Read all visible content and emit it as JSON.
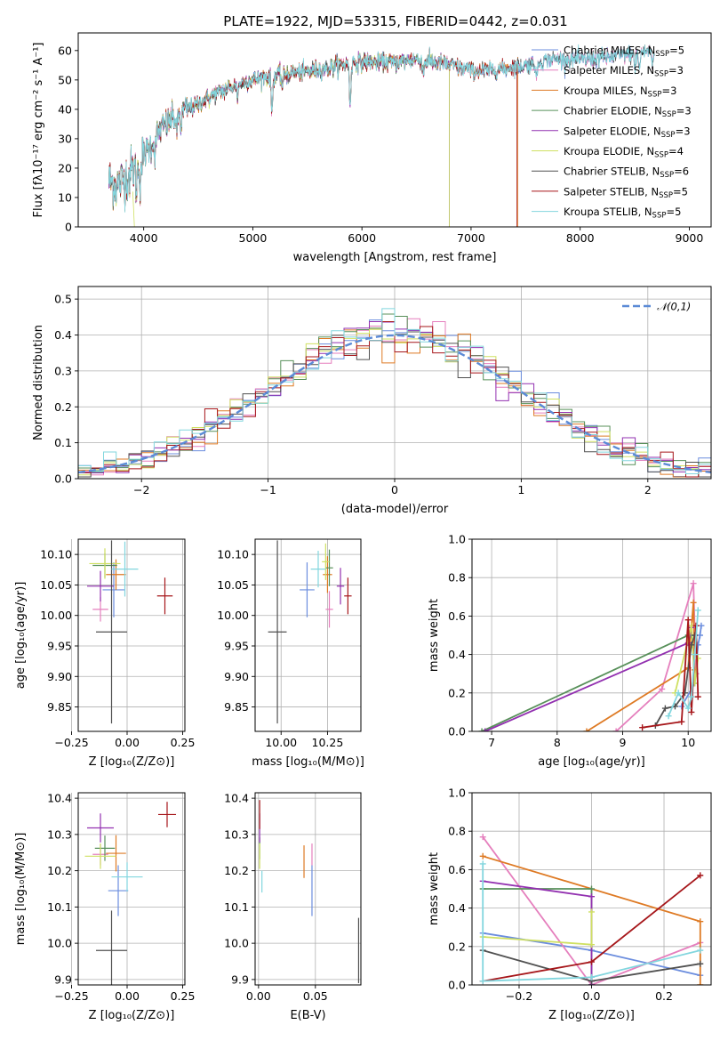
{
  "title": "PLATE=1922, MJD=53315, FIBERID=0442, z=0.031",
  "colors": {
    "Chabrier MILES": "#6b8dde",
    "Salpeter MILES": "#e57fbd",
    "Kroupa MILES": "#de7a24",
    "Chabrier ELODIE": "#58905a",
    "Salpeter ELODIE": "#9230b0",
    "Kroupa ELODIE": "#cfe062",
    "Chabrier STELIB": "#515151",
    "Salpeter STELIB": "#a6161a",
    "Kroupa STELIB": "#82d6de"
  },
  "chart_data": [
    {
      "id": "spectrum",
      "type": "line",
      "title": "PLATE=1922, MJD=53315, FIBERID=0442, z=0.031",
      "xlabel": "wavelength [Angstrom, rest frame]",
      "ylabel": "Flux [fλ10⁻¹⁷ erg cm⁻² s⁻¹ A⁻¹]",
      "xlim": [
        3400,
        9200
      ],
      "ylim": [
        0,
        66
      ],
      "xticks": [
        4000,
        5000,
        6000,
        7000,
        8000,
        9000
      ],
      "yticks": [
        0,
        10,
        20,
        30,
        40,
        50,
        60
      ],
      "legend_loc": "right",
      "continuum": {
        "x": [
          3680,
          3750,
          3850,
          3950,
          4050,
          4150,
          4300,
          4500,
          4700,
          4900,
          5100,
          5300,
          5500,
          5700,
          5900,
          6100,
          6300,
          6500,
          6700,
          6900,
          7100,
          7300,
          7500,
          7700,
          7900,
          8100,
          8300,
          8500,
          8650
        ],
        "y": [
          16,
          14,
          17,
          22,
          27,
          33,
          38,
          42,
          46,
          49,
          51,
          52,
          53,
          54,
          56,
          56,
          56,
          57,
          56,
          54,
          53,
          54,
          55,
          57,
          57,
          57,
          58,
          59,
          60
        ]
      },
      "absorption_lines": [
        {
          "x": 3934,
          "depth": 8
        },
        {
          "x": 3969,
          "depth": 7
        },
        {
          "x": 4102,
          "depth": 5
        },
        {
          "x": 4305,
          "depth": 6
        },
        {
          "x": 4340,
          "depth": 4
        },
        {
          "x": 4861,
          "depth": 4
        },
        {
          "x": 5175,
          "depth": 12
        },
        {
          "x": 5270,
          "depth": 4
        },
        {
          "x": 5892,
          "depth": 14
        },
        {
          "x": 6563,
          "depth": 4
        },
        {
          "x": 7600,
          "depth": 6
        },
        {
          "x": 8500,
          "depth": 5
        },
        {
          "x": 8542,
          "depth": 6
        },
        {
          "x": 8662,
          "depth": 5
        }
      ],
      "series": [
        {
          "name": "Chabrier MILES, N",
          "sub": "SSP",
          "suffix": "=5",
          "end": 8700
        },
        {
          "name": "Salpeter MILES, N",
          "sub": "SSP",
          "suffix": "=3",
          "end": 8700
        },
        {
          "name": "Kroupa MILES, N",
          "sub": "SSP",
          "suffix": "=3",
          "end": 7430
        },
        {
          "name": "Chabrier ELODIE, N",
          "sub": "SSP",
          "suffix": "=3",
          "end": 6800
        },
        {
          "name": "Salpeter ELODIE, N",
          "sub": "SSP",
          "suffix": "=3",
          "end": 6800
        },
        {
          "name": "Kroupa ELODIE, N",
          "sub": "SSP",
          "suffix": "=4",
          "end": 6800
        },
        {
          "name": "Chabrier STELIB, N",
          "sub": "SSP",
          "suffix": "=6",
          "end": 8700
        },
        {
          "name": "Salpeter STELIB, N",
          "sub": "SSP",
          "suffix": "=5",
          "end": 7420
        },
        {
          "name": "Kroupa STELIB, N",
          "sub": "SSP",
          "suffix": "=5",
          "end": 8700
        }
      ]
    },
    {
      "id": "residuals",
      "type": "line",
      "xlabel": "(data-model)/error",
      "ylabel": "Normed distribution",
      "xlim": [
        -2.5,
        2.5
      ],
      "ylim": [
        0,
        0.535
      ],
      "xticks": [
        -2,
        -1,
        0,
        1,
        2
      ],
      "yticks": [
        0.0,
        0.1,
        0.2,
        0.3,
        0.4,
        0.5
      ],
      "bin_width": 0.1,
      "bin_start": -2.5,
      "legend": "𝒩(0,1)",
      "gaussian": {
        "mean": 0,
        "sigma": 1
      }
    },
    {
      "id": "age_vs_Z",
      "type": "scatter",
      "xlabel": "Z [log₁₀(Z/Z⊙)]",
      "ylabel": "age  [log₁₀(age/yr)]",
      "xlim": [
        -0.22,
        0.26
      ],
      "ylim": [
        9.81,
        10.125
      ],
      "xticks": [
        "-0.25",
        "0.00",
        "0.25"
      ],
      "yticks": [
        "9.85",
        "9.90",
        "9.95",
        "10.00",
        "10.05",
        "10.10"
      ],
      "points": [
        {
          "model": "Chabrier MILES",
          "x": -0.06,
          "y": 10.042,
          "xerr": 0.05,
          "yerr": 0.045
        },
        {
          "model": "Salpeter MILES",
          "x": -0.12,
          "y": 10.01,
          "xerr": 0.035,
          "yerr": 0.02
        },
        {
          "model": "Kroupa MILES",
          "x": -0.05,
          "y": 10.067,
          "xerr": 0.045,
          "yerr": 0.025
        },
        {
          "model": "Chabrier ELODIE",
          "x": -0.1,
          "y": 10.082,
          "xerr": 0.055,
          "yerr": 0.02
        },
        {
          "model": "Salpeter ELODIE",
          "x": -0.12,
          "y": 10.048,
          "xerr": 0.06,
          "yerr": 0.025
        },
        {
          "model": "Kroupa ELODIE",
          "x": -0.1,
          "y": 10.085,
          "xerr": 0.07,
          "yerr": 0.025
        },
        {
          "model": "Chabrier STELIB",
          "x": -0.07,
          "y": 9.973,
          "xerr": 0.07,
          "yerr": 0.15
        },
        {
          "model": "Salpeter STELIB",
          "x": 0.17,
          "y": 10.032,
          "xerr": 0.035,
          "yerr": 0.03
        },
        {
          "model": "Kroupa STELIB",
          "x": -0.01,
          "y": 10.076,
          "xerr": 0.06,
          "yerr": 0.045
        }
      ]
    },
    {
      "id": "age_vs_mass",
      "type": "scatter",
      "xlabel": "mass [log₁₀(M/M⊙)]",
      "ylabel": "",
      "xlim": [
        9.86,
        10.43
      ],
      "ylim": [
        9.81,
        10.125
      ],
      "xticks": [
        "10.00",
        "10.25"
      ],
      "yticks": [
        "9.85",
        "9.90",
        "9.95",
        "10.00",
        "10.05",
        "10.10"
      ],
      "points": [
        {
          "model": "Chabrier MILES",
          "x": 10.14,
          "y": 10.042,
          "xerr": 0.04,
          "yerr": 0.045
        },
        {
          "model": "Salpeter MILES",
          "x": 10.26,
          "y": 10.01,
          "xerr": 0.02,
          "yerr": 0.03
        },
        {
          "model": "Kroupa MILES",
          "x": 10.25,
          "y": 10.067,
          "xerr": 0.025,
          "yerr": 0.03
        },
        {
          "model": "Chabrier ELODIE",
          "x": 10.26,
          "y": 10.078,
          "xerr": 0.02,
          "yerr": 0.03
        },
        {
          "model": "Salpeter ELODIE",
          "x": 10.32,
          "y": 10.048,
          "xerr": 0.02,
          "yerr": 0.03
        },
        {
          "model": "Kroupa ELODIE",
          "x": 10.24,
          "y": 10.088,
          "xerr": 0.02,
          "yerr": 0.03
        },
        {
          "model": "Chabrier STELIB",
          "x": 9.98,
          "y": 9.973,
          "xerr": 0.05,
          "yerr": 0.15
        },
        {
          "model": "Salpeter STELIB",
          "x": 10.36,
          "y": 10.032,
          "xerr": 0.02,
          "yerr": 0.03
        },
        {
          "model": "Kroupa STELIB",
          "x": 10.2,
          "y": 10.076,
          "xerr": 0.04,
          "yerr": 0.03
        }
      ]
    },
    {
      "id": "mass_weight_vs_age",
      "type": "line",
      "xlabel": "age  [log₁₀(age/yr)]",
      "ylabel": "mass weight",
      "xlim": [
        6.7,
        10.35
      ],
      "ylim": [
        0,
        1.0
      ],
      "xticks": [
        7,
        8,
        9,
        10
      ],
      "yticks": [
        0.0,
        0.2,
        0.4,
        0.6,
        0.8,
        1.0
      ],
      "series": [
        {
          "model": "Chabrier MILES",
          "x": [
            9.9,
            10.1,
            10.15,
            10.18,
            10.2
          ],
          "y": [
            0.13,
            0.25,
            0.45,
            0.5,
            0.55
          ]
        },
        {
          "model": "Salpeter MILES",
          "x": [
            8.9,
            9.6,
            10.08,
            10.12
          ],
          "y": [
            0.0,
            0.22,
            0.77,
            0.3
          ]
        },
        {
          "model": "Kroupa MILES",
          "x": [
            8.45,
            10.0,
            10.08,
            10.1
          ],
          "y": [
            0.0,
            0.33,
            0.67,
            0.32
          ]
        },
        {
          "model": "Chabrier ELODIE",
          "x": [
            6.85,
            10.0,
            10.05
          ],
          "y": [
            0.0,
            0.5,
            0.5
          ]
        },
        {
          "model": "Salpeter ELODIE",
          "x": [
            6.9,
            10.0,
            10.05
          ],
          "y": [
            0.0,
            0.46,
            0.54
          ]
        },
        {
          "model": "Kroupa ELODIE",
          "x": [
            9.8,
            10.05,
            10.1,
            10.15
          ],
          "y": [
            0.2,
            0.55,
            0.25,
            0.38
          ]
        },
        {
          "model": "Chabrier STELIB",
          "x": [
            9.5,
            9.65,
            9.8,
            9.95,
            10.05,
            10.1
          ],
          "y": [
            0.03,
            0.12,
            0.13,
            0.2,
            0.45,
            0.5
          ]
        },
        {
          "model": "Salpeter STELIB",
          "x": [
            9.3,
            9.9,
            10.0,
            10.05,
            10.12,
            10.15
          ],
          "y": [
            0.02,
            0.05,
            0.58,
            0.1,
            0.55,
            0.18
          ]
        },
        {
          "model": "Kroupa STELIB",
          "x": [
            9.7,
            9.85,
            10.0,
            10.05,
            10.1,
            10.15
          ],
          "y": [
            0.08,
            0.2,
            0.12,
            0.18,
            0.4,
            0.63
          ]
        }
      ]
    },
    {
      "id": "mass_vs_Z",
      "type": "scatter",
      "xlabel": "Z [log₁₀(Z/Z⊙)]",
      "ylabel": "mass [log₁₀(M/M⊙)]",
      "xlim": [
        -0.22,
        0.26
      ],
      "ylim": [
        9.885,
        10.415
      ],
      "xticks": [
        "-0.25",
        "0.00",
        "0.25"
      ],
      "yticks": [
        "9.9",
        "10.0",
        "10.1",
        "10.2",
        "10.3",
        "10.4"
      ],
      "points": [
        {
          "model": "Chabrier MILES",
          "x": -0.04,
          "y": 10.145,
          "xerr": 0.045,
          "yerr": 0.07
        },
        {
          "model": "Salpeter MILES",
          "x": -0.12,
          "y": 10.245,
          "xerr": 0.035,
          "yerr": 0.03
        },
        {
          "model": "Kroupa MILES",
          "x": -0.05,
          "y": 10.248,
          "xerr": 0.045,
          "yerr": 0.05
        },
        {
          "model": "Chabrier ELODIE",
          "x": -0.1,
          "y": 10.262,
          "xerr": 0.045,
          "yerr": 0.035
        },
        {
          "model": "Salpeter ELODIE",
          "x": -0.12,
          "y": 10.318,
          "xerr": 0.06,
          "yerr": 0.04
        },
        {
          "model": "Kroupa ELODIE",
          "x": -0.12,
          "y": 10.24,
          "xerr": 0.07,
          "yerr": 0.035
        },
        {
          "model": "Chabrier STELIB",
          "x": -0.07,
          "y": 9.98,
          "xerr": 0.07,
          "yerr": 0.11
        },
        {
          "model": "Salpeter STELIB",
          "x": 0.18,
          "y": 10.355,
          "xerr": 0.04,
          "yerr": 0.035
        },
        {
          "model": "Kroupa STELIB",
          "x": 0.0,
          "y": 10.183,
          "xerr": 0.07,
          "yerr": 0.04
        }
      ]
    },
    {
      "id": "mass_vs_EBV",
      "type": "scatter",
      "xlabel": "E(B-V)",
      "ylabel": "",
      "xlim": [
        -0.003,
        0.09
      ],
      "ylim": [
        9.885,
        10.415
      ],
      "xticks": [
        "0.00",
        "0.05"
      ],
      "yticks": [
        "9.9",
        "10.0",
        "10.1",
        "10.2",
        "10.3",
        "10.4"
      ],
      "points": [
        {
          "model": "Chabrier MILES",
          "x": 0.047,
          "y": 10.145,
          "xerr": 0,
          "yerr": 0.07
        },
        {
          "model": "Salpeter MILES",
          "x": 0.047,
          "y": 10.245,
          "xerr": 0,
          "yerr": 0.03
        },
        {
          "model": "Kroupa MILES",
          "x": 0.04,
          "y": 10.225,
          "xerr": 0,
          "yerr": 0.045
        },
        {
          "model": "Chabrier ELODIE",
          "x": 0.001,
          "y": 10.262,
          "xerr": 0,
          "yerr": 0.03
        },
        {
          "model": "Salpeter ELODIE",
          "x": 0.001,
          "y": 10.318,
          "xerr": 0,
          "yerr": 0.04
        },
        {
          "model": "Kroupa ELODIE",
          "x": 0.001,
          "y": 10.24,
          "xerr": 0,
          "yerr": 0.035
        },
        {
          "model": "Chabrier STELIB",
          "x": 0.088,
          "y": 9.98,
          "xerr": 0,
          "yerr": 0.09
        },
        {
          "model": "Salpeter STELIB",
          "x": 0.001,
          "y": 10.355,
          "xerr": 0,
          "yerr": 0.04
        },
        {
          "model": "Kroupa STELIB",
          "x": 0.003,
          "y": 10.17,
          "xerr": 0,
          "yerr": 0.03
        }
      ]
    },
    {
      "id": "mass_weight_vs_Z",
      "type": "line",
      "xlabel": "Z [log₁₀(Z/Z⊙)]",
      "ylabel": "mass weight",
      "xlim": [
        -0.33,
        0.33
      ],
      "ylim": [
        0,
        1.0
      ],
      "xticks": [
        "-0.2",
        "0.0",
        "0.2"
      ],
      "yticks": [
        0.0,
        0.2,
        0.4,
        0.6,
        0.8,
        1.0
      ],
      "series": [
        {
          "model": "Chabrier MILES",
          "x": [
            -0.3,
            0.0,
            0.3
          ],
          "y": [
            0.27,
            0.18,
            0.05
          ]
        },
        {
          "model": "Salpeter MILES",
          "x": [
            -0.3,
            0.0,
            0.3
          ],
          "y": [
            0.77,
            0.0,
            0.22
          ]
        },
        {
          "model": "Kroupa MILES",
          "x": [
            -0.3,
            0.3,
            0.3
          ],
          "y": [
            0.67,
            0.33,
            0.0
          ]
        },
        {
          "model": "Chabrier ELODIE",
          "x": [
            -0.3,
            0.0,
            0.0
          ],
          "y": [
            0.5,
            0.5,
            0.0
          ]
        },
        {
          "model": "Salpeter ELODIE",
          "x": [
            -0.3,
            0.0,
            0.0
          ],
          "y": [
            0.54,
            0.46,
            0.0
          ]
        },
        {
          "model": "Kroupa ELODIE",
          "x": [
            -0.3,
            0.0,
            0.0
          ],
          "y": [
            0.25,
            0.21,
            0.38
          ]
        },
        {
          "model": "Chabrier STELIB",
          "x": [
            -0.3,
            0.0,
            0.3
          ],
          "y": [
            0.18,
            0.02,
            0.11
          ]
        },
        {
          "model": "Salpeter STELIB",
          "x": [
            -0.3,
            0.0,
            0.3
          ],
          "y": [
            0.02,
            0.12,
            0.57
          ]
        },
        {
          "model": "Kroupa STELIB",
          "x": [
            -0.3,
            -0.3,
            0.0,
            0.3
          ],
          "y": [
            0.63,
            0.02,
            0.04,
            0.18
          ]
        }
      ]
    }
  ]
}
